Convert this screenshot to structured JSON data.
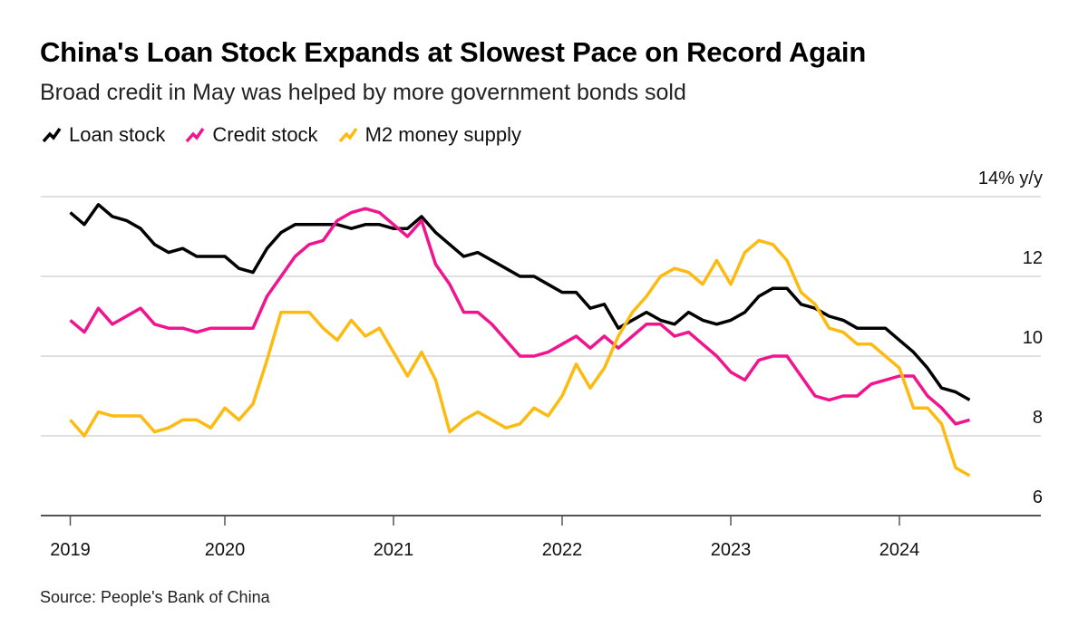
{
  "header": {
    "title": "China's Loan Stock Expands at Slowest Pace on Record Again",
    "subtitle": "Broad credit in May was helped by more government bonds sold"
  },
  "footer": {
    "source": "Source: People's Bank of China"
  },
  "chart_data": {
    "type": "line",
    "title": "China's Loan Stock Expands at Slowest Pace on Record Again",
    "subtitle": "Broad credit in May was helped by more government bonds sold",
    "xlabel": "",
    "ylabel": "",
    "y_unit_label": "14% y/y",
    "x_start": "2019-01",
    "x_end": "2024-05",
    "x_frequency": "monthly",
    "x_ticks": [
      "2019",
      "2020",
      "2021",
      "2022",
      "2023",
      "2024"
    ],
    "y_ticks": [
      6,
      8,
      10,
      12,
      14
    ],
    "y_tick_labels": [
      "6",
      "8",
      "10",
      "12",
      "14% y/y"
    ],
    "ylim": [
      6,
      14
    ],
    "grid": true,
    "legend_position": "top-left",
    "series": [
      {
        "name": "Loan stock",
        "color": "#000000",
        "values": [
          13.6,
          13.3,
          13.8,
          13.5,
          13.4,
          13.2,
          12.8,
          12.6,
          12.7,
          12.5,
          12.5,
          12.5,
          12.2,
          12.1,
          12.7,
          13.1,
          13.3,
          13.3,
          13.3,
          13.3,
          13.2,
          13.3,
          13.3,
          13.2,
          13.2,
          13.5,
          13.1,
          12.8,
          12.5,
          12.6,
          12.4,
          12.2,
          12.0,
          12.0,
          11.8,
          11.6,
          11.6,
          11.2,
          11.3,
          10.7,
          10.9,
          11.1,
          10.9,
          10.8,
          11.1,
          10.9,
          10.8,
          10.9,
          11.1,
          11.5,
          11.7,
          11.7,
          11.3,
          11.2,
          11.0,
          10.9,
          10.7,
          10.7,
          10.7,
          10.4,
          10.1,
          9.7,
          9.2,
          9.1,
          8.9
        ]
      },
      {
        "name": "Credit stock",
        "color": "#f0158f",
        "values": [
          10.9,
          10.6,
          11.2,
          10.8,
          11.0,
          11.2,
          10.8,
          10.7,
          10.7,
          10.6,
          10.7,
          10.7,
          10.7,
          10.7,
          11.5,
          12.0,
          12.5,
          12.8,
          12.9,
          13.4,
          13.6,
          13.7,
          13.6,
          13.3,
          13.0,
          13.4,
          12.3,
          11.8,
          11.1,
          11.1,
          10.8,
          10.4,
          10.0,
          10.0,
          10.1,
          10.3,
          10.5,
          10.2,
          10.5,
          10.2,
          10.5,
          10.8,
          10.8,
          10.5,
          10.6,
          10.3,
          10.0,
          9.6,
          9.4,
          9.9,
          10.0,
          10.0,
          9.5,
          9.0,
          8.9,
          9.0,
          9.0,
          9.3,
          9.4,
          9.5,
          9.5,
          9.0,
          8.7,
          8.3,
          8.4
        ]
      },
      {
        "name": "M2 money supply",
        "color": "#fdbb11",
        "values": [
          8.4,
          8.0,
          8.6,
          8.5,
          8.5,
          8.5,
          8.1,
          8.2,
          8.4,
          8.4,
          8.2,
          8.7,
          8.4,
          8.8,
          9.9,
          11.1,
          11.1,
          11.1,
          10.7,
          10.4,
          10.9,
          10.5,
          10.7,
          10.1,
          9.5,
          10.1,
          9.4,
          8.1,
          8.4,
          8.6,
          8.4,
          8.2,
          8.3,
          8.7,
          8.5,
          9.0,
          9.8,
          9.2,
          9.7,
          10.5,
          11.1,
          11.5,
          12.0,
          12.2,
          12.1,
          11.8,
          12.4,
          11.8,
          12.6,
          12.9,
          12.8,
          12.4,
          11.6,
          11.3,
          10.7,
          10.6,
          10.3,
          10.3,
          10.0,
          9.7,
          8.7,
          8.7,
          8.3,
          7.2,
          7.0
        ]
      }
    ]
  }
}
